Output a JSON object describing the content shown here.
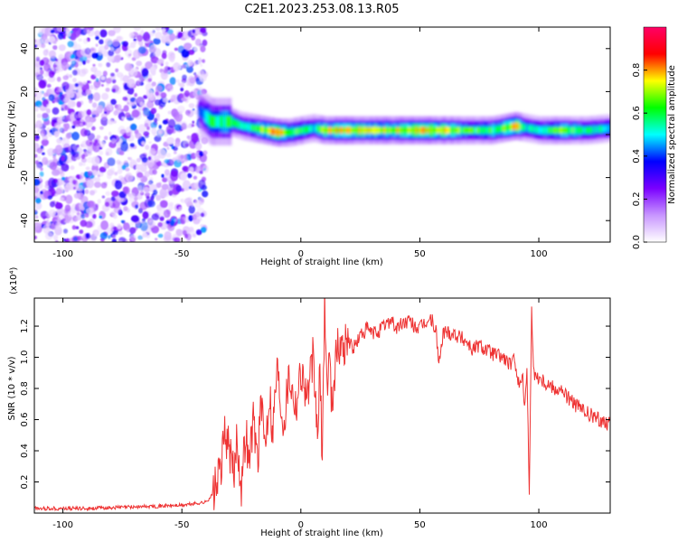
{
  "title": "C2E1.2023.253.08.13.R05",
  "chart_data": [
    {
      "type": "heatmap",
      "xlabel": "Height of straight line (km)",
      "ylabel": "Frequency (Hz)",
      "xlim": [
        -112,
        130
      ],
      "ylim": [
        -50,
        50
      ],
      "xticks": [
        -100,
        -50,
        0,
        50,
        100
      ],
      "yticks": [
        -40,
        -20,
        0,
        20,
        40
      ],
      "colorbar": {
        "label": "Normalized spectral amplitude",
        "range": [
          0,
          1
        ],
        "ticks": [
          "0.0",
          "0.2",
          "0.4",
          "0.6",
          "0.8"
        ],
        "colors": [
          "#ffffff",
          "#c896ff",
          "#7a00ff",
          "#0000ff",
          "#00ffff",
          "#00ff00",
          "#ffff00",
          "#ff0000",
          "#ff0066"
        ]
      },
      "noise_region_x": [
        -112,
        -40
      ],
      "ridge": {
        "x": [
          -43,
          -40,
          -38,
          -35,
          -30,
          -25,
          -20,
          -15,
          -10,
          -5,
          0,
          5,
          10,
          20,
          30,
          40,
          50,
          60,
          70,
          80,
          90,
          95,
          100,
          110,
          120,
          130
        ],
        "freq": [
          11,
          8,
          6,
          6,
          6,
          4,
          3,
          2,
          1,
          1,
          2,
          3,
          2,
          2,
          2,
          2,
          2,
          2,
          2,
          2,
          4,
          3,
          2,
          2,
          2,
          3
        ],
        "amplitude": [
          0.35,
          0.5,
          0.6,
          0.55,
          0.6,
          0.5,
          0.6,
          0.7,
          0.8,
          0.6,
          0.6,
          0.5,
          0.7,
          0.75,
          0.7,
          0.7,
          0.75,
          0.7,
          0.6,
          0.6,
          0.75,
          0.5,
          0.55,
          0.65,
          0.55,
          0.5
        ]
      }
    },
    {
      "type": "line",
      "xlabel": "Height of straight line (km)",
      "ylabel": "SNR (10 * v/v)",
      "multiplier": "(x10⁴)",
      "xlim": [
        -112,
        130
      ],
      "ylim": [
        0,
        13800
      ],
      "xticks": [
        -100,
        -50,
        0,
        50,
        100
      ],
      "yticks": [
        "0.2",
        "0.4",
        "0.6",
        "0.8",
        "1.0",
        "1.2"
      ],
      "ytick_values": [
        2000,
        4000,
        6000,
        8000,
        10000,
        12000
      ],
      "color": "#ee3333",
      "series": [
        {
          "x": [
            -112,
            -90,
            -70,
            -50,
            -40,
            -37,
            -35,
            -33,
            -32,
            -30,
            -28,
            -27,
            -25,
            -23,
            -22,
            -20,
            -18,
            -17,
            -15,
            -13,
            -12,
            -10,
            -8,
            -7,
            -5,
            -3,
            -2,
            0,
            2,
            3,
            5,
            7,
            8,
            9,
            10,
            11,
            12,
            13,
            15,
            18,
            20,
            22,
            25,
            28,
            30,
            33,
            35,
            38,
            40,
            43,
            45,
            48,
            50,
            52,
            55,
            57,
            58,
            60,
            65,
            70,
            72,
            75,
            80,
            85,
            88,
            90,
            92,
            93,
            94,
            95,
            96,
            97,
            98,
            100,
            102,
            105,
            110,
            115,
            120,
            125,
            130
          ],
          "y": [
            300,
            300,
            400,
            500,
            700,
            1200,
            2000,
            3500,
            5300,
            4000,
            2200,
            5000,
            1800,
            5500,
            3000,
            6000,
            3500,
            7000,
            4500,
            8000,
            5000,
            9500,
            6500,
            6000,
            9000,
            7500,
            7000,
            9200,
            8000,
            7500,
            10000,
            5000,
            9000,
            3500,
            13800,
            8000,
            10200,
            7000,
            10500,
            10800,
            11200,
            10500,
            11400,
            11800,
            11500,
            11700,
            12000,
            12500,
            11800,
            12200,
            12300,
            12000,
            11800,
            12200,
            12400,
            11500,
            9500,
            11700,
            11500,
            11000,
            10500,
            10800,
            10300,
            10000,
            9500,
            9800,
            8000,
            9000,
            7000,
            9200,
            1500,
            13000,
            8800,
            8800,
            8500,
            8200,
            7800,
            7000,
            6400,
            6000,
            5800
          ]
        }
      ]
    }
  ]
}
